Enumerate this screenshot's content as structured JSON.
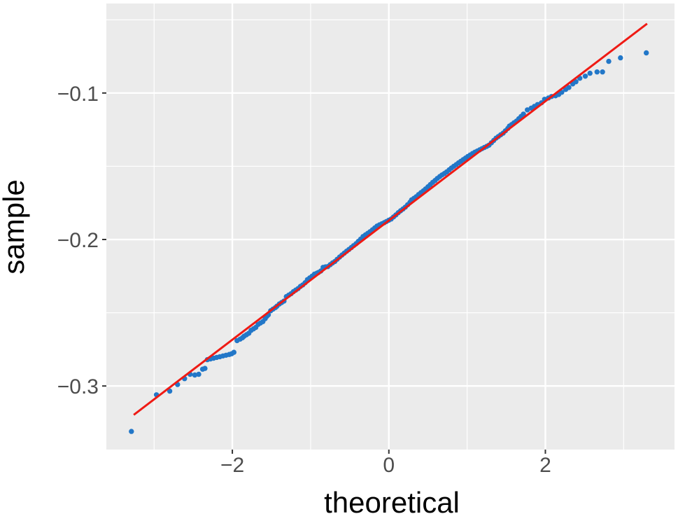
{
  "chart_data": {
    "type": "scatter",
    "subtype": "qq-plot",
    "title": "",
    "xlabel": "theoretical",
    "ylabel": "sample",
    "xlim": [
      -3.61,
      3.65
    ],
    "ylim": [
      -0.3434,
      -0.0389
    ],
    "x_major_ticks": [
      -2,
      0,
      2
    ],
    "x_tick_labels": [
      "−2",
      "0",
      "2"
    ],
    "x_minor_gridlines": [
      -3,
      -1,
      1,
      3
    ],
    "y_major_ticks": [
      -0.1,
      -0.2,
      -0.3
    ],
    "y_tick_labels": [
      "−0.1",
      "−0.2",
      "−0.3"
    ],
    "y_minor_gridlines": [
      -0.05,
      -0.15,
      -0.25
    ],
    "grid": "on",
    "legend": "none",
    "ref_line": {
      "slope": 0.0407,
      "intercept": -0.187,
      "x_start": -3.26,
      "x_end": 3.3
    },
    "points_style": {
      "radius": 3.7
    },
    "colors": {
      "background": "#FFFFFF",
      "panel": "#EBEBEB",
      "grid": "#FFFFFF",
      "point": "#2277C8",
      "ref_line": "#EF1A14",
      "tick_text": "#4D4D4D",
      "axis_title": "#000000",
      "tick_mark": "#333333"
    },
    "points": [
      [
        -3.29,
        -0.331
      ],
      [
        -2.97,
        -0.306
      ],
      [
        -2.8,
        -0.3035
      ],
      [
        -2.7,
        -0.299
      ],
      [
        -2.61,
        -0.295
      ],
      [
        -2.54,
        -0.292
      ],
      [
        -2.48,
        -0.2925
      ],
      [
        -2.43,
        -0.292
      ],
      [
        -2.38,
        -0.2885
      ],
      [
        -2.35,
        -0.288
      ],
      [
        -2.32,
        -0.282
      ],
      [
        -2.28,
        -0.2815
      ],
      [
        -2.24,
        -0.281
      ],
      [
        -2.2,
        -0.2805
      ],
      [
        -2.16,
        -0.28
      ],
      [
        -2.12,
        -0.2795
      ],
      [
        -2.08,
        -0.279
      ],
      [
        -2.04,
        -0.2785
      ],
      [
        -2.01,
        -0.278
      ],
      [
        -1.98,
        -0.277
      ],
      [
        -1.94,
        -0.269
      ],
      [
        -1.9,
        -0.268
      ],
      [
        -1.87,
        -0.267
      ],
      [
        -1.85,
        -0.266
      ],
      [
        -1.82,
        -0.265
      ],
      [
        -1.79,
        -0.264
      ],
      [
        -1.76,
        -0.262
      ],
      [
        -1.73,
        -0.261
      ],
      [
        -1.7,
        -0.26
      ],
      [
        -1.67,
        -0.258
      ],
      [
        -1.64,
        -0.257
      ],
      [
        -1.61,
        -0.256
      ],
      [
        -1.58,
        -0.254
      ],
      [
        -1.56,
        -0.2525
      ],
      [
        -1.54,
        -0.2514
      ],
      [
        -1.51,
        -0.2486
      ],
      [
        -1.48,
        -0.2475
      ],
      [
        -1.45,
        -0.2465
      ],
      [
        -1.43,
        -0.2455
      ],
      [
        -1.4,
        -0.244
      ],
      [
        -1.37,
        -0.243
      ],
      [
        -1.34,
        -0.242
      ],
      [
        -1.31,
        -0.239
      ],
      [
        -1.28,
        -0.238
      ],
      [
        -1.25,
        -0.237
      ],
      [
        -1.22,
        -0.2356
      ],
      [
        -1.19,
        -0.2345
      ],
      [
        -1.16,
        -0.2335
      ],
      [
        -1.13,
        -0.232
      ],
      [
        -1.1,
        -0.231
      ],
      [
        -1.07,
        -0.2295
      ],
      [
        -1.04,
        -0.2274
      ],
      [
        -1.01,
        -0.2262
      ],
      [
        -0.98,
        -0.225
      ],
      [
        -0.95,
        -0.2236
      ],
      [
        -0.92,
        -0.223
      ],
      [
        -0.9,
        -0.2225
      ],
      [
        -0.87,
        -0.2215
      ],
      [
        -0.84,
        -0.219
      ],
      [
        -0.81,
        -0.2187
      ],
      [
        -0.78,
        -0.2185
      ],
      [
        -0.75,
        -0.2172
      ],
      [
        -0.72,
        -0.216
      ],
      [
        -0.69,
        -0.215
      ],
      [
        -0.66,
        -0.2135
      ],
      [
        -0.63,
        -0.212
      ],
      [
        -0.6,
        -0.2106
      ],
      [
        -0.57,
        -0.2093
      ],
      [
        -0.54,
        -0.208
      ],
      [
        -0.51,
        -0.2068
      ],
      [
        -0.48,
        -0.2055
      ],
      [
        -0.45,
        -0.2042
      ],
      [
        -0.42,
        -0.2029
      ],
      [
        -0.39,
        -0.2013
      ],
      [
        -0.36,
        -0.1997
      ],
      [
        -0.33,
        -0.198
      ],
      [
        -0.3,
        -0.1969
      ],
      [
        -0.27,
        -0.1958
      ],
      [
        -0.24,
        -0.1947
      ],
      [
        -0.21,
        -0.1934
      ],
      [
        -0.18,
        -0.1921
      ],
      [
        -0.15,
        -0.1908
      ],
      [
        -0.12,
        -0.19
      ],
      [
        -0.09,
        -0.1893
      ],
      [
        -0.06,
        -0.1885
      ],
      [
        -0.03,
        -0.1877
      ],
      [
        0.0,
        -0.1868
      ],
      [
        0.03,
        -0.186
      ],
      [
        0.06,
        -0.1846
      ],
      [
        0.09,
        -0.1832
      ],
      [
        0.12,
        -0.1817
      ],
      [
        0.15,
        -0.1804
      ],
      [
        0.18,
        -0.1792
      ],
      [
        0.21,
        -0.1779
      ],
      [
        0.24,
        -0.1763
      ],
      [
        0.27,
        -0.1746
      ],
      [
        0.29,
        -0.173
      ],
      [
        0.32,
        -0.1719
      ],
      [
        0.35,
        -0.1708
      ],
      [
        0.38,
        -0.1693
      ],
      [
        0.41,
        -0.168
      ],
      [
        0.44,
        -0.1668
      ],
      [
        0.47,
        -0.1655
      ],
      [
        0.5,
        -0.164
      ],
      [
        0.53,
        -0.1625
      ],
      [
        0.56,
        -0.161
      ],
      [
        0.59,
        -0.1597
      ],
      [
        0.62,
        -0.1583
      ],
      [
        0.65,
        -0.157
      ],
      [
        0.68,
        -0.1559
      ],
      [
        0.71,
        -0.1549
      ],
      [
        0.74,
        -0.1538
      ],
      [
        0.77,
        -0.1525
      ],
      [
        0.8,
        -0.1512
      ],
      [
        0.83,
        -0.15
      ],
      [
        0.86,
        -0.1489
      ],
      [
        0.89,
        -0.1477
      ],
      [
        0.92,
        -0.1466
      ],
      [
        0.95,
        -0.1455
      ],
      [
        0.98,
        -0.1444
      ],
      [
        1.01,
        -0.1433
      ],
      [
        1.04,
        -0.1423
      ],
      [
        1.07,
        -0.1413
      ],
      [
        1.1,
        -0.1404
      ],
      [
        1.13,
        -0.1396
      ],
      [
        1.16,
        -0.1388
      ],
      [
        1.19,
        -0.138
      ],
      [
        1.22,
        -0.1372
      ],
      [
        1.25,
        -0.1364
      ],
      [
        1.28,
        -0.1356
      ],
      [
        1.31,
        -0.134
      ],
      [
        1.34,
        -0.1324
      ],
      [
        1.37,
        -0.1308
      ],
      [
        1.4,
        -0.1297
      ],
      [
        1.43,
        -0.1285
      ],
      [
        1.46,
        -0.1274
      ],
      [
        1.49,
        -0.1258
      ],
      [
        1.52,
        -0.1242
      ],
      [
        1.54,
        -0.1226
      ],
      [
        1.57,
        -0.1215
      ],
      [
        1.6,
        -0.1203
      ],
      [
        1.63,
        -0.1192
      ],
      [
        1.66,
        -0.1176
      ],
      [
        1.69,
        -0.116
      ],
      [
        1.72,
        -0.1144
      ],
      [
        1.77,
        -0.1115
      ],
      [
        1.82,
        -0.1103
      ],
      [
        1.86,
        -0.1091
      ],
      [
        1.9,
        -0.1079
      ],
      [
        1.95,
        -0.1067
      ],
      [
        1.99,
        -0.1043
      ],
      [
        2.04,
        -0.1034
      ],
      [
        2.08,
        -0.1024
      ],
      [
        2.13,
        -0.1019
      ],
      [
        2.17,
        -0.101
      ],
      [
        2.21,
        -0.0995
      ],
      [
        2.26,
        -0.0976
      ],
      [
        2.3,
        -0.0962
      ],
      [
        2.35,
        -0.0938
      ],
      [
        2.39,
        -0.0923
      ],
      [
        2.44,
        -0.0899
      ],
      [
        2.51,
        -0.0885
      ],
      [
        2.57,
        -0.0865
      ],
      [
        2.66,
        -0.0856
      ],
      [
        2.73,
        -0.0856
      ],
      [
        2.81,
        -0.0784
      ],
      [
        2.96,
        -0.076
      ],
      [
        3.29,
        -0.0726
      ]
    ]
  }
}
